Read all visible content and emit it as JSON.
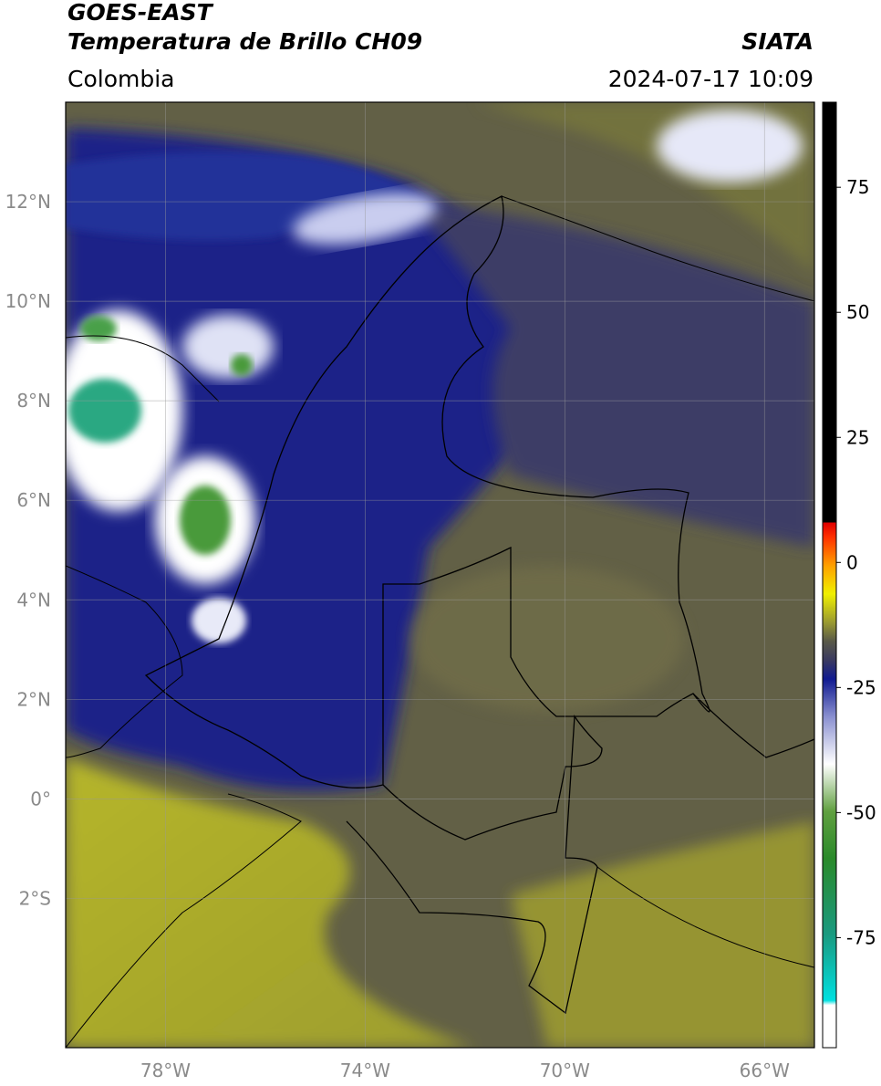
{
  "header": {
    "satellite": "GOES-EAST",
    "product": "Temperatura de Brillo CH09",
    "agency": "SIATA",
    "region": "Colombia",
    "datetime": "2024-07-17 10:09"
  },
  "map": {
    "xlim": [
      -80,
      -65
    ],
    "ylim": [
      -5,
      14
    ],
    "xticks": [
      {
        "value": -78,
        "label": "78°W"
      },
      {
        "value": -74,
        "label": "74°W"
      },
      {
        "value": -70,
        "label": "70°W"
      },
      {
        "value": -66,
        "label": "66°W"
      }
    ],
    "yticks": [
      {
        "value": 12,
        "label": "12°N"
      },
      {
        "value": 10,
        "label": "10°N"
      },
      {
        "value": 8,
        "label": "8°N"
      },
      {
        "value": 6,
        "label": "6°N"
      },
      {
        "value": 4,
        "label": "4°N"
      },
      {
        "value": 2,
        "label": "2°N"
      },
      {
        "value": 0,
        "label": "0°"
      },
      {
        "value": -2,
        "label": "2°S"
      }
    ]
  },
  "colorbar": {
    "lim": [
      -97,
      92
    ],
    "ticks": [
      75,
      50,
      25,
      0,
      -25,
      -50,
      -75
    ]
  }
}
